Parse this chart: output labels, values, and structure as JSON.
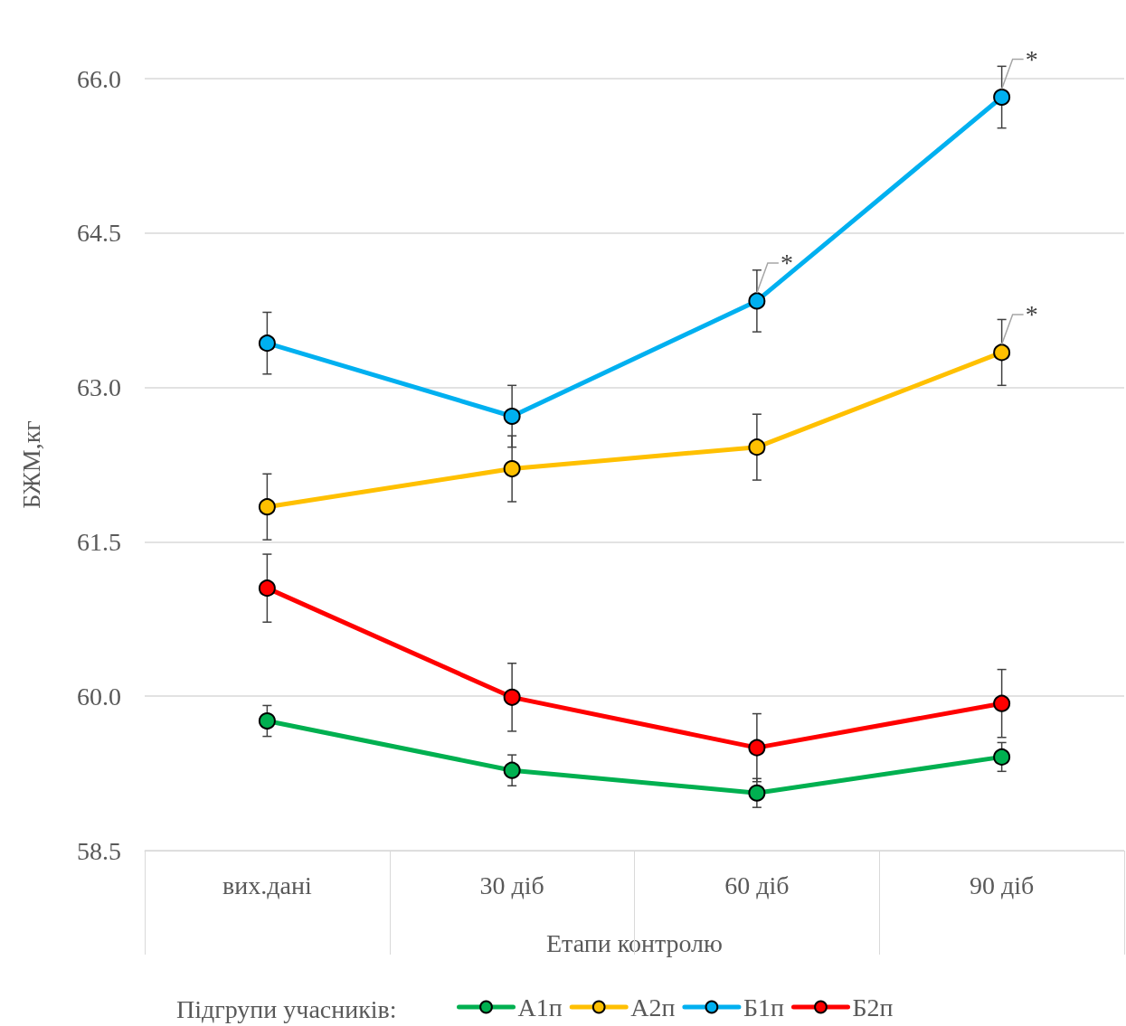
{
  "chart_data": {
    "type": "line",
    "xlabel": "Етапи контролю",
    "ylabel": "БЖМ,кг",
    "legend_title": "Підгрупи учасників:",
    "categories": [
      "вих.дані",
      "30 діб",
      "60 діб",
      "90 діб"
    ],
    "series": [
      {
        "name": "А1п",
        "color": "#00b050",
        "values": [
          59.76,
          59.28,
          59.06,
          59.41
        ],
        "errors": [
          0.15,
          0.15,
          0.14,
          0.14
        ]
      },
      {
        "name": "А2п",
        "color": "#ffc000",
        "values": [
          61.84,
          62.21,
          62.42,
          63.34
        ],
        "errors": [
          0.32,
          0.32,
          0.32,
          0.32
        ]
      },
      {
        "name": "Б1п",
        "color": "#00b0f0",
        "values": [
          63.43,
          62.72,
          63.84,
          65.82
        ],
        "errors": [
          0.3,
          0.3,
          0.3,
          0.3
        ]
      },
      {
        "name": "Б2п",
        "color": "#ff0000",
        "values": [
          61.05,
          59.99,
          59.5,
          59.93
        ],
        "errors": [
          0.33,
          0.33,
          0.33,
          0.33
        ]
      }
    ],
    "annotations": [
      {
        "text": "*",
        "x": "60 діб",
        "y": 63.84
      },
      {
        "text": "*",
        "x": "90 діб",
        "y": 65.82
      },
      {
        "text": "*",
        "x": "90 діб",
        "y": 63.34
      }
    ],
    "ylim": [
      58.5,
      66.0
    ],
    "yticks": [
      {
        "value": 58.5,
        "label": "58.5"
      },
      {
        "value": 60,
        "label": "60.0"
      },
      {
        "value": 61.5,
        "label": "61.5"
      },
      {
        "value": 63,
        "label": "63.0"
      },
      {
        "value": 64.5,
        "label": "64.5"
      },
      {
        "value": 66,
        "label": "66.0"
      }
    ],
    "grid": "y",
    "legend": "bottom",
    "marker": "circle",
    "line_style": "solid"
  }
}
